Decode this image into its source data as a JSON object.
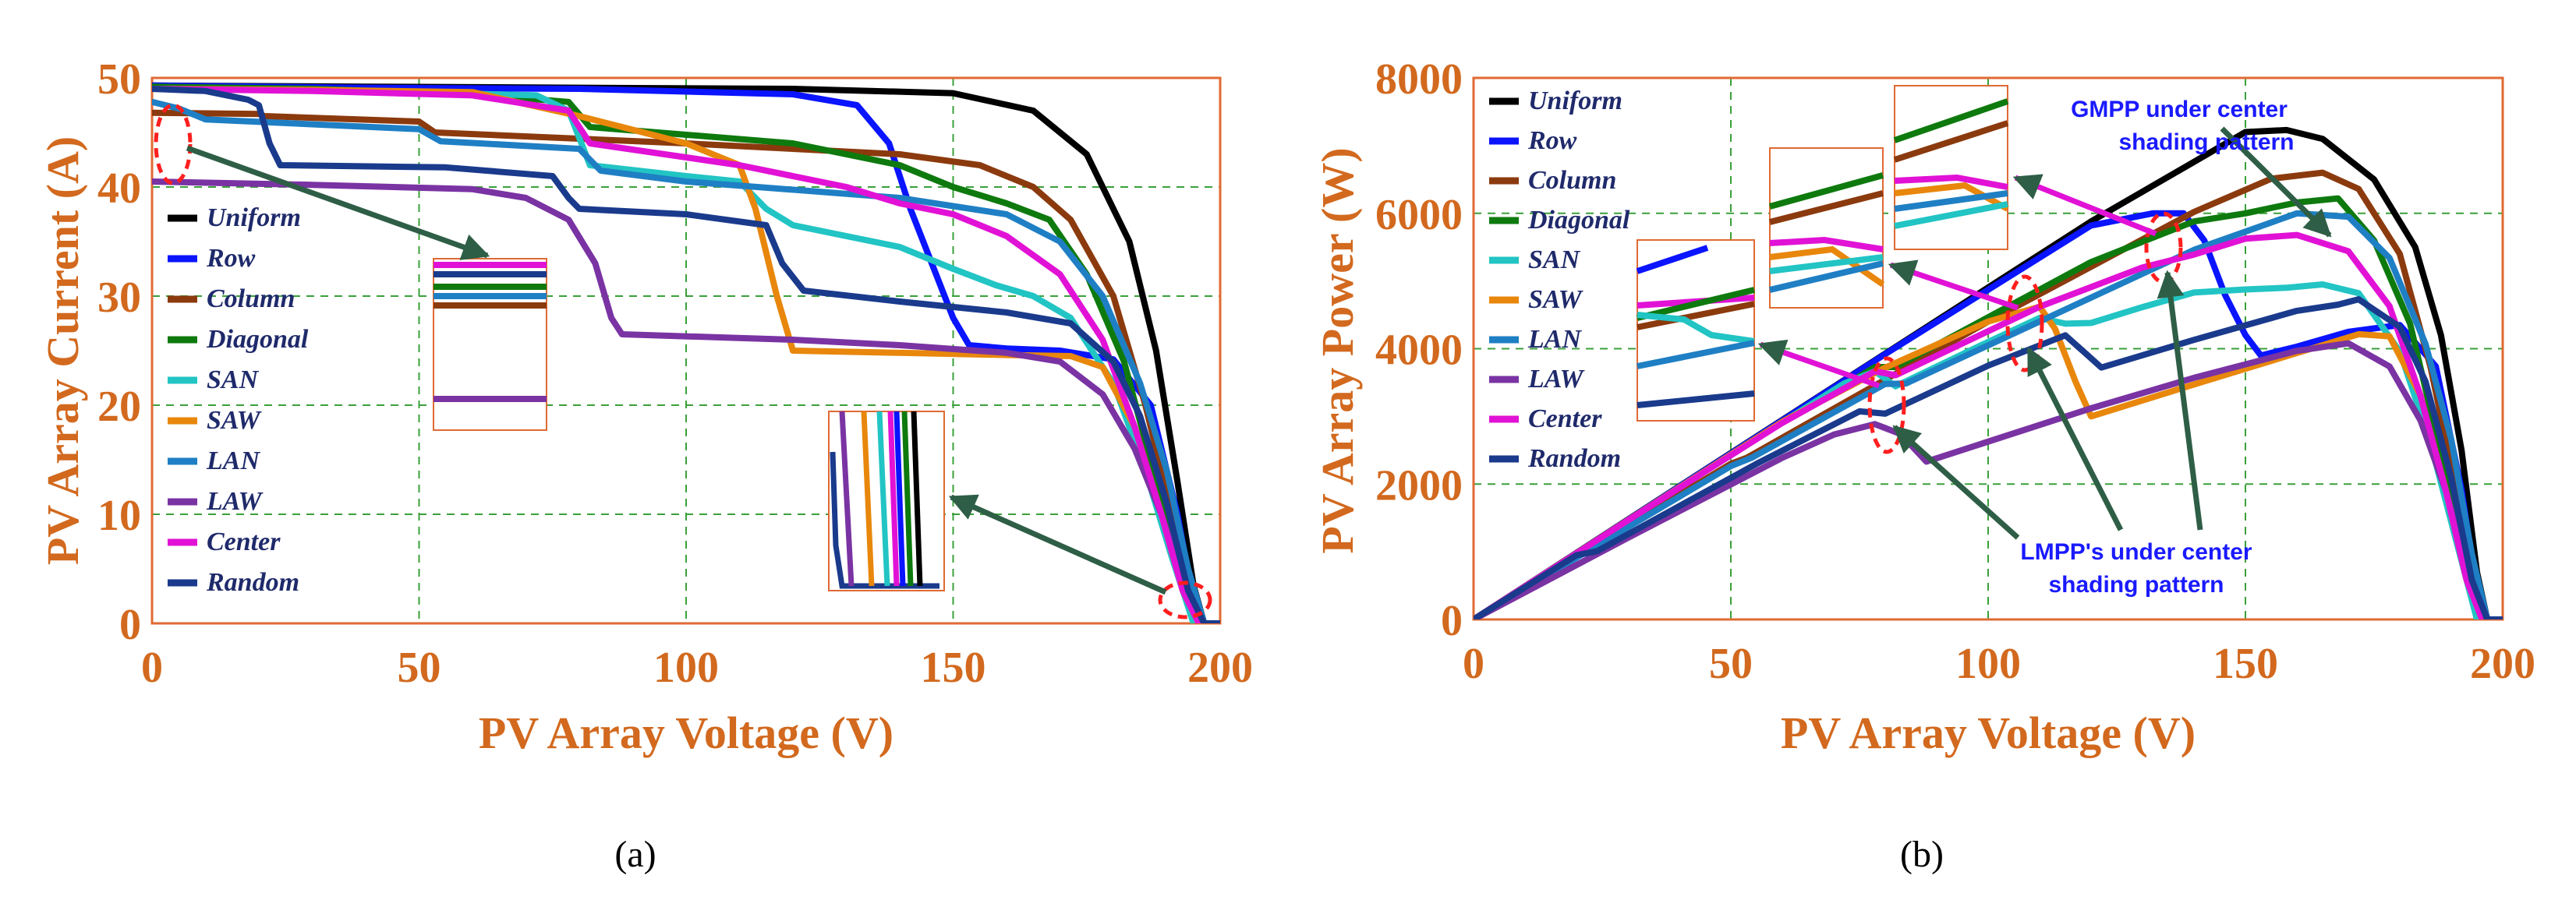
{
  "chart_data": [
    {
      "type": "line",
      "panel_label": "a",
      "title": "",
      "xlabel": "PV Array Voltage (V)",
      "ylabel": "PV Array Current (A)",
      "xlim": [
        0,
        200
      ],
      "ylim": [
        0,
        50
      ],
      "xticks": [
        "0",
        "50",
        "100",
        "150",
        "200"
      ],
      "yticks": [
        "0",
        "10",
        "20",
        "30",
        "40",
        "50"
      ],
      "grid": true,
      "legend_position": "left",
      "series": [
        {
          "name": "Uniform",
          "color": "#000000",
          "x": [
            0,
            40,
            80,
            120,
            150,
            165,
            175,
            183,
            188,
            192,
            195,
            197,
            200
          ],
          "y": [
            49.3,
            49.2,
            49.1,
            49.0,
            48.6,
            47.0,
            43.0,
            35.0,
            25.0,
            13.0,
            3.5,
            0,
            0
          ]
        },
        {
          "name": "Row",
          "color": "#0a14ff",
          "x": [
            0,
            40,
            80,
            120,
            132,
            138,
            142,
            146,
            150,
            153,
            160,
            170,
            180,
            187,
            192,
            195,
            197,
            200
          ],
          "y": [
            49.3,
            49.1,
            49.0,
            48.5,
            47.5,
            44.0,
            38.0,
            33.0,
            28.0,
            25.5,
            25.2,
            25.0,
            24.2,
            20.0,
            10.0,
            2.0,
            0,
            0
          ]
        },
        {
          "name": "Column",
          "color": "#8b3a0e",
          "x": [
            0,
            20,
            21,
            50,
            53,
            100,
            140,
            155,
            165,
            172,
            180,
            186,
            191,
            195,
            197,
            200
          ],
          "y": [
            46.8,
            46.7,
            46.5,
            46.0,
            45.0,
            44.0,
            43.0,
            42.0,
            40.0,
            37.0,
            30.0,
            20.0,
            10.0,
            3.0,
            0,
            0
          ]
        },
        {
          "name": "Diagonal",
          "color": "#0e7a0e",
          "x": [
            0,
            30,
            60,
            78,
            82,
            120,
            140,
            150,
            160,
            168,
            175,
            182,
            188,
            193,
            196,
            200
          ],
          "y": [
            49.2,
            49.0,
            48.5,
            47.8,
            45.5,
            44.0,
            42.0,
            40.0,
            38.5,
            37.0,
            32.0,
            24.0,
            13.0,
            4.0,
            0,
            0
          ]
        },
        {
          "name": "SAN",
          "color": "#22c4c4",
          "x": [
            0,
            40,
            72,
            78,
            82,
            100,
            110,
            115,
            120,
            130,
            140,
            150,
            158,
            165,
            172,
            180,
            186,
            191,
            195,
            200
          ],
          "y": [
            49.0,
            48.8,
            48.4,
            47.0,
            42.0,
            41.0,
            40.5,
            38.0,
            36.5,
            35.5,
            34.5,
            32.5,
            31.0,
            30.0,
            28.0,
            22.0,
            14.0,
            6.0,
            0,
            0
          ]
        },
        {
          "name": "SAW",
          "color": "#e8870c",
          "x": [
            0,
            30,
            60,
            80,
            100,
            110,
            113,
            117,
            120,
            140,
            160,
            172,
            178,
            184,
            189,
            193,
            196,
            200
          ],
          "y": [
            49.0,
            48.9,
            48.7,
            46.5,
            44.0,
            42.0,
            38.0,
            30.0,
            25.0,
            24.8,
            24.6,
            24.5,
            23.5,
            18.0,
            10.0,
            3.0,
            0,
            0
          ]
        },
        {
          "name": "LAN",
          "color": "#1f7fc4",
          "x": [
            0,
            5,
            10,
            50,
            54,
            80,
            84,
            100,
            140,
            160,
            170,
            178,
            185,
            190,
            194,
            197,
            200
          ],
          "y": [
            47.8,
            47.2,
            46.2,
            45.3,
            44.2,
            43.5,
            41.5,
            40.5,
            39.0,
            37.5,
            35.0,
            30.0,
            22.0,
            14.0,
            5.0,
            0,
            0
          ]
        },
        {
          "name": "LAW",
          "color": "#7a33a3",
          "x": [
            0,
            30,
            60,
            70,
            78,
            83,
            86,
            88,
            120,
            140,
            160,
            170,
            178,
            184,
            189,
            193,
            196,
            200
          ],
          "y": [
            40.5,
            40.2,
            39.8,
            39.0,
            37.0,
            33.0,
            28.0,
            26.5,
            26.0,
            25.5,
            24.8,
            24.0,
            21.0,
            16.0,
            10.0,
            4.0,
            0,
            0
          ]
        },
        {
          "name": "Center",
          "color": "#e112d6",
          "x": [
            0,
            30,
            60,
            78,
            82,
            110,
            130,
            140,
            150,
            160,
            170,
            178,
            184,
            189,
            193,
            196,
            200
          ],
          "y": [
            49.0,
            48.8,
            48.4,
            47.0,
            44.0,
            42.0,
            40.0,
            38.5,
            37.5,
            35.5,
            32.0,
            26.0,
            18.0,
            10.0,
            3.0,
            0,
            0
          ]
        },
        {
          "name": "Random",
          "color": "#1a3a8c",
          "x": [
            0,
            10,
            18,
            20,
            22,
            24,
            55,
            75,
            78,
            80,
            100,
            115,
            118,
            122,
            140,
            160,
            172,
            180,
            185,
            190,
            194,
            197,
            200
          ],
          "y": [
            49.0,
            48.8,
            48.0,
            47.5,
            44.0,
            42.0,
            41.8,
            41.0,
            39.0,
            38.0,
            37.5,
            36.5,
            33.0,
            30.5,
            29.5,
            28.5,
            27.5,
            24.0,
            19.0,
            11.0,
            3.0,
            0,
            0
          ]
        }
      ]
    },
    {
      "type": "line",
      "panel_label": "b",
      "title": "",
      "xlabel": "PV Array Voltage (V)",
      "ylabel": "PV Array Power (W)",
      "xlim": [
        0,
        200
      ],
      "ylim": [
        0,
        8000
      ],
      "xticks": [
        "0",
        "50",
        "100",
        "150",
        "200"
      ],
      "yticks": [
        "0",
        "2000",
        "4000",
        "6000",
        "8000"
      ],
      "grid": true,
      "legend_position": "left",
      "annotations": [
        {
          "text": "GMPP under center",
          "line2": "shading pattern"
        },
        {
          "text": "LMPP's under center",
          "line2": "shading pattern"
        }
      ],
      "series": [
        {
          "name": "Uniform",
          "color": "#000000",
          "x": [
            0,
            40,
            80,
            120,
            150,
            158,
            165,
            175,
            183,
            188,
            192,
            195,
            197,
            200
          ],
          "y": [
            0,
            1968,
            3928,
            5880,
            7200,
            7230,
            7100,
            6500,
            5500,
            4200,
            2500,
            700,
            0,
            0
          ]
        },
        {
          "name": "Row",
          "color": "#0a14ff",
          "x": [
            0,
            40,
            80,
            120,
            132,
            138,
            142,
            146,
            150,
            153,
            160,
            170,
            180,
            187,
            192,
            195,
            197,
            200
          ],
          "y": [
            0,
            1964,
            3920,
            5820,
            6000,
            6000,
            5600,
            4800,
            4200,
            3900,
            4030,
            4250,
            4350,
            3740,
            1920,
            390,
            0,
            0
          ]
        },
        {
          "name": "Column",
          "color": "#8b3a0e",
          "x": [
            0,
            20,
            50,
            53,
            100,
            140,
            155,
            165,
            172,
            180,
            186,
            191,
            195,
            197,
            200
          ],
          "y": [
            0,
            934,
            2300,
            2385,
            4400,
            6020,
            6510,
            6600,
            6360,
            5400,
            3720,
            1910,
            585,
            0,
            0
          ]
        },
        {
          "name": "Diagonal",
          "color": "#0e7a0e",
          "x": [
            0,
            30,
            60,
            78,
            82,
            120,
            140,
            150,
            160,
            168,
            175,
            182,
            188,
            193,
            196,
            200
          ],
          "y": [
            0,
            1470,
            2910,
            3730,
            3730,
            5280,
            5880,
            6000,
            6160,
            6220,
            5600,
            4370,
            2440,
            770,
            0,
            0
          ]
        },
        {
          "name": "SAN",
          "color": "#22c4c4",
          "x": [
            0,
            40,
            72,
            78,
            82,
            100,
            110,
            115,
            120,
            130,
            140,
            150,
            158,
            165,
            172,
            180,
            186,
            191,
            195,
            200
          ],
          "y": [
            0,
            1952,
            3485,
            3666,
            3444,
            4100,
            4455,
            4370,
            4380,
            4615,
            4830,
            4875,
            4900,
            4950,
            4820,
            3960,
            2600,
            1150,
            0,
            0
          ]
        },
        {
          "name": "SAW",
          "color": "#e8870c",
          "x": [
            0,
            30,
            60,
            80,
            100,
            110,
            113,
            117,
            120,
            140,
            160,
            172,
            178,
            184,
            189,
            193,
            196,
            200
          ],
          "y": [
            0,
            1467,
            2922,
            3720,
            4400,
            4620,
            4294,
            3510,
            3000,
            3472,
            3936,
            4214,
            4183,
            3312,
            1890,
            580,
            0,
            0
          ]
        },
        {
          "name": "LAN",
          "color": "#1f7fc4",
          "x": [
            0,
            10,
            50,
            54,
            80,
            84,
            100,
            140,
            160,
            170,
            178,
            185,
            190,
            194,
            197,
            200
          ],
          "y": [
            0,
            462,
            2265,
            2387,
            3480,
            3486,
            4050,
            5460,
            6000,
            5950,
            5340,
            4070,
            2660,
            970,
            0,
            0
          ]
        },
        {
          "name": "LAW",
          "color": "#7a33a3",
          "x": [
            0,
            30,
            60,
            70,
            78,
            83,
            88,
            120,
            140,
            160,
            170,
            178,
            184,
            189,
            193,
            196,
            200
          ],
          "y": [
            0,
            1206,
            2388,
            2730,
            2886,
            2739,
            2332,
            3120,
            3570,
            3968,
            4080,
            3738,
            2944,
            1890,
            772,
            0,
            0
          ]
        },
        {
          "name": "Center",
          "color": "#e112d6",
          "x": [
            0,
            30,
            60,
            78,
            82,
            110,
            130,
            140,
            150,
            160,
            170,
            178,
            184,
            189,
            193,
            196,
            200
          ],
          "y": [
            0,
            1464,
            2904,
            3666,
            3608,
            4620,
            5200,
            5390,
            5625,
            5680,
            5440,
            4628,
            3312,
            1890,
            579,
            0,
            0
          ]
        },
        {
          "name": "Random",
          "color": "#1a3a8c",
          "x": [
            0,
            20,
            24,
            55,
            75,
            80,
            100,
            115,
            122,
            140,
            160,
            168,
            172,
            180,
            185,
            190,
            194,
            197,
            200
          ],
          "y": [
            0,
            950,
            1008,
            2300,
            3075,
            3040,
            3750,
            4198,
            3721,
            4130,
            4560,
            4650,
            4730,
            4320,
            3515,
            2090,
            582,
            0,
            0
          ]
        }
      ]
    }
  ],
  "captions": [
    "(a)",
    "(b)"
  ]
}
